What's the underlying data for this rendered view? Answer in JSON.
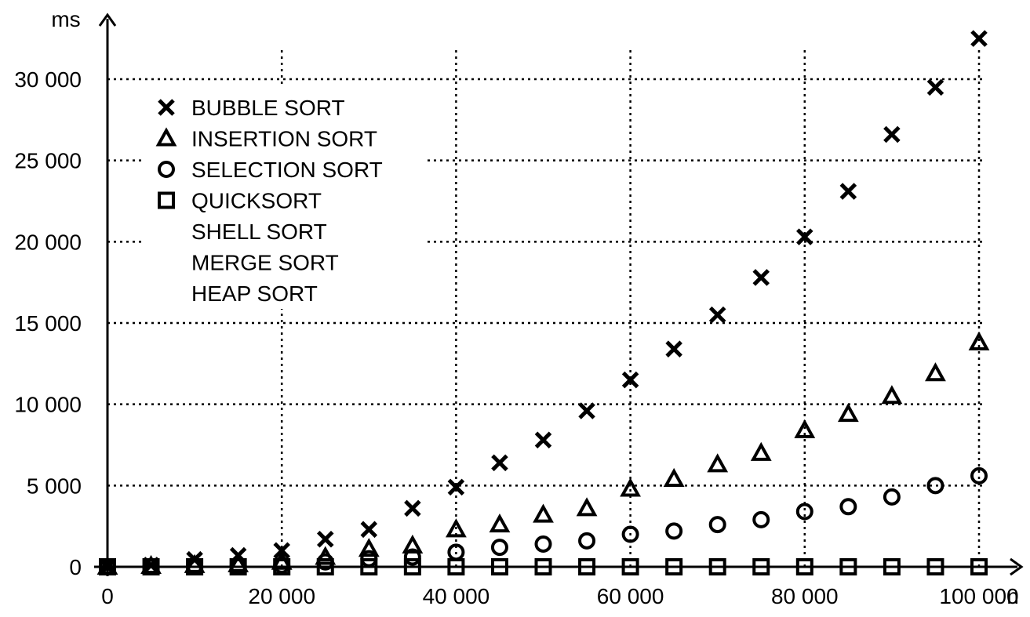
{
  "chart_data": {
    "type": "scatter",
    "xlabel": "n",
    "ylabel": "ms",
    "xlim": [
      0,
      104000
    ],
    "ylim": [
      0,
      32000
    ],
    "x_ticks": [
      {
        "value": 0,
        "label": "0"
      },
      {
        "value": 20000,
        "label": "20 000"
      },
      {
        "value": 40000,
        "label": "40 000"
      },
      {
        "value": 60000,
        "label": "60 000"
      },
      {
        "value": 80000,
        "label": "80 000"
      },
      {
        "value": 100000,
        "label": "100 000"
      }
    ],
    "y_ticks": [
      {
        "value": 0,
        "label": "0"
      },
      {
        "value": 5000,
        "label": "5 000"
      },
      {
        "value": 10000,
        "label": "10 000"
      },
      {
        "value": 15000,
        "label": "15 000"
      },
      {
        "value": 20000,
        "label": "20 000"
      },
      {
        "value": 25000,
        "label": "25 000"
      },
      {
        "value": 30000,
        "label": "30 000"
      }
    ],
    "grid": true,
    "legend_position": "top-left",
    "x": [
      0,
      5000,
      10000,
      15000,
      20000,
      25000,
      30000,
      35000,
      40000,
      45000,
      50000,
      55000,
      60000,
      65000,
      70000,
      75000,
      80000,
      85000,
      90000,
      95000,
      100000
    ],
    "series": [
      {
        "name": "BUBBLE SORT",
        "marker": "x",
        "values": [
          0,
          100,
          450,
          700,
          1000,
          1700,
          2300,
          3600,
          4900,
          6400,
          7800,
          9600,
          11500,
          13400,
          15500,
          17800,
          20300,
          23100,
          26600,
          29500,
          32500
        ]
      },
      {
        "name": "INSERTION SORT",
        "marker": "triangle",
        "values": [
          0,
          50,
          100,
          150,
          300,
          600,
          1100,
          1300,
          2300,
          2600,
          3200,
          3600,
          4800,
          5400,
          6300,
          7000,
          8400,
          9400,
          10500,
          11900,
          13800
        ]
      },
      {
        "name": "SELECTION SORT",
        "marker": "circle",
        "values": [
          0,
          0,
          50,
          50,
          100,
          300,
          500,
          600,
          900,
          1200,
          1400,
          1600,
          2000,
          2200,
          2600,
          2900,
          3400,
          3700,
          4300,
          5000,
          5600
        ]
      },
      {
        "name": "QUICKSORT",
        "marker": "square",
        "values": [
          0,
          0,
          0,
          0,
          0,
          0,
          0,
          0,
          0,
          0,
          0,
          0,
          0,
          0,
          0,
          0,
          0,
          0,
          0,
          0,
          0
        ]
      },
      {
        "name": "SHELL SORT",
        "marker": "none",
        "values": []
      },
      {
        "name": "MERGE SORT",
        "marker": "none",
        "values": []
      },
      {
        "name": "HEAP SORT",
        "marker": "none",
        "values": []
      }
    ]
  }
}
